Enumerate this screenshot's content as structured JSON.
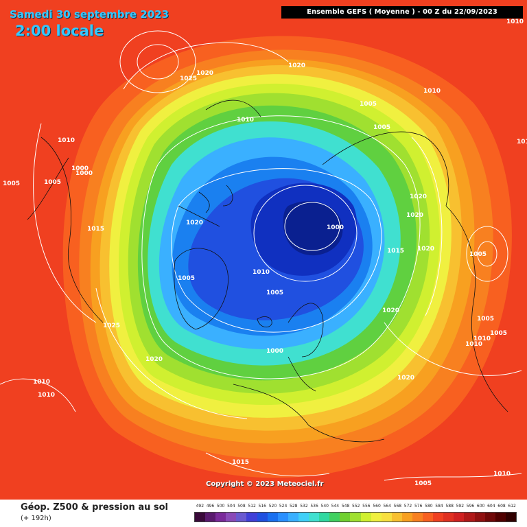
{
  "header": {
    "date": "Samedi 30 septembre 2023",
    "time": "2:00 locale",
    "model_run": "Ensemble GEFS  ( Moyenne )  -  00 Z du 22/09/2023"
  },
  "footer": {
    "copyright": "Copyright © 2023 Meteociel.fr",
    "legend_title": "Géop. Z500 & pression au sol",
    "legend_subtitle": "(+ 192h)"
  },
  "colors": {
    "ocean_bg": "#f04020",
    "coastline": "#111111",
    "isobar": "#ffffff"
  },
  "scale": {
    "values": [
      "492",
      "496",
      "500",
      "504",
      "508",
      "512",
      "516",
      "520",
      "524",
      "528",
      "532",
      "536",
      "540",
      "544",
      "548",
      "552",
      "556",
      "560",
      "564",
      "568",
      "572",
      "576",
      "580",
      "584",
      "588",
      "592",
      "596",
      "600",
      "604",
      "608",
      "612"
    ],
    "colors": [
      "#3a0a3a",
      "#5a1a6e",
      "#7a2a9a",
      "#8a4ab8",
      "#6a5ad0",
      "#4040d8",
      "#2050e0",
      "#1a70f0",
      "#2a90ff",
      "#3ab0ff",
      "#40d0f8",
      "#40e0d0",
      "#30d8a0",
      "#40d060",
      "#70d030",
      "#a0e030",
      "#d0f030",
      "#f0f040",
      "#f8e040",
      "#f8c030",
      "#f8a020",
      "#f88020",
      "#f86020",
      "#f04020",
      "#e03020",
      "#d02020",
      "#b01818",
      "#901010",
      "#700808",
      "#500000",
      "#300000"
    ]
  },
  "isobar_labels": [
    {
      "text": "1010"
    },
    {
      "text": "1005"
    },
    {
      "text": "1005"
    },
    {
      "text": "1000"
    },
    {
      "text": "1000"
    },
    {
      "text": "1015"
    },
    {
      "text": "1025"
    },
    {
      "text": "1020"
    },
    {
      "text": "1010"
    },
    {
      "text": "1010"
    },
    {
      "text": "1025"
    },
    {
      "text": "1020"
    },
    {
      "text": "1020"
    },
    {
      "text": "1010"
    },
    {
      "text": "1005"
    },
    {
      "text": "1005"
    },
    {
      "text": "1010"
    },
    {
      "text": "1020"
    },
    {
      "text": "1000"
    },
    {
      "text": "1005"
    },
    {
      "text": "1010"
    },
    {
      "text": "1005"
    },
    {
      "text": "1000"
    },
    {
      "text": "1020"
    },
    {
      "text": "1020"
    },
    {
      "text": "1015"
    },
    {
      "text": "1020"
    },
    {
      "text": "1020"
    },
    {
      "text": "1005"
    },
    {
      "text": "1005"
    },
    {
      "text": "1010"
    },
    {
      "text": "1005"
    },
    {
      "text": "1010"
    },
    {
      "text": "1020"
    },
    {
      "text": "1015"
    },
    {
      "text": "1005"
    },
    {
      "text": "1010"
    },
    {
      "text": "1010"
    },
    {
      "text": "1010"
    },
    {
      "text": "1005"
    }
  ]
}
